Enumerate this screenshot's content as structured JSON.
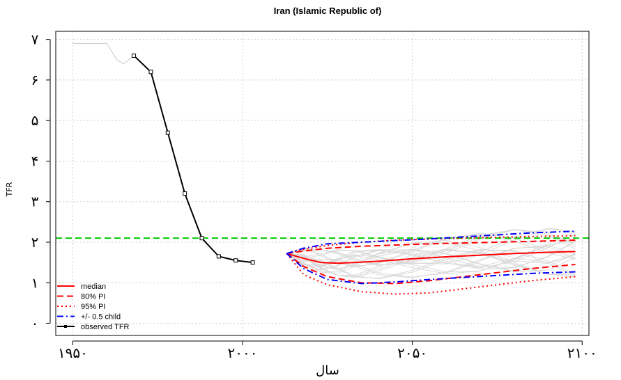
{
  "chart_data": {
    "type": "line",
    "title": "Iran (Islamic Republic of)",
    "xlabel": "سال",
    "ylabel": "TFR",
    "xlim": [
      1945,
      2102
    ],
    "ylim": [
      -0.3,
      7.2
    ],
    "grid": true,
    "legend_position": "bottom-left",
    "x_ticks": [
      {
        "value": 1950,
        "label": "۱۹۵۰"
      },
      {
        "value": 2000,
        "label": "۲۰۰۰"
      },
      {
        "value": 2050,
        "label": "۲۰۵۰"
      },
      {
        "value": 2100,
        "label": "۲۱۰۰"
      }
    ],
    "y_ticks": [
      {
        "value": 0,
        "label": "۰"
      },
      {
        "value": 1,
        "label": "۱"
      },
      {
        "value": 2,
        "label": "۲"
      },
      {
        "value": 3,
        "label": "۳"
      },
      {
        "value": 4,
        "label": "۴"
      },
      {
        "value": 5,
        "label": "۵"
      },
      {
        "value": 6,
        "label": "۶"
      },
      {
        "value": 7,
        "label": "۷"
      }
    ],
    "reference_line": {
      "y": 2.1,
      "color": "#00cc00"
    },
    "series": [
      {
        "name": "observed TFR",
        "color": "#000000",
        "x": [
          1968,
          1973,
          1978,
          1983,
          1988,
          1993,
          1998,
          2003
        ],
        "y": [
          6.6,
          6.2,
          4.7,
          3.2,
          2.1,
          1.65,
          1.55,
          1.5
        ]
      },
      {
        "name": "median",
        "color": "#ff0000",
        "x": [
          2013,
          2018,
          2023,
          2028,
          2033,
          2040,
          2050,
          2060,
          2070,
          2080,
          2090,
          2098
        ],
        "y": [
          1.72,
          1.6,
          1.5,
          1.48,
          1.5,
          1.53,
          1.59,
          1.64,
          1.68,
          1.72,
          1.75,
          1.77
        ]
      },
      {
        "name": "80% PI",
        "color": "#ff0000",
        "x": [
          2013,
          2018,
          2025,
          2035,
          2045,
          2055,
          2065,
          2075,
          2085,
          2098
        ],
        "y_upper": [
          1.72,
          1.78,
          1.85,
          1.9,
          1.93,
          1.96,
          1.98,
          2.0,
          2.02,
          2.05
        ],
        "y_lower": [
          1.72,
          1.4,
          1.15,
          1.0,
          0.98,
          1.05,
          1.15,
          1.25,
          1.35,
          1.45
        ]
      },
      {
        "name": "95% PI",
        "color": "#ff0000",
        "x": [
          2013,
          2018,
          2025,
          2035,
          2045,
          2055,
          2065,
          2075,
          2085,
          2098
        ],
        "y_upper": [
          1.72,
          1.82,
          1.92,
          2.0,
          2.05,
          2.08,
          2.1,
          2.12,
          2.14,
          2.16
        ],
        "y_lower": [
          1.72,
          1.2,
          0.95,
          0.78,
          0.72,
          0.75,
          0.85,
          0.95,
          1.05,
          1.15
        ]
      },
      {
        "name": "+/- 0.5 child",
        "color": "#0000ff",
        "x": [
          2013,
          2018,
          2025,
          2035,
          2045,
          2055,
          2065,
          2075,
          2085,
          2098
        ],
        "y_upper": [
          1.72,
          1.85,
          1.96,
          2.0,
          2.04,
          2.08,
          2.13,
          2.18,
          2.23,
          2.27
        ],
        "y_lower": [
          1.72,
          1.35,
          1.08,
          0.98,
          1.02,
          1.08,
          1.13,
          1.18,
          1.23,
          1.27
        ]
      }
    ],
    "background_series": {
      "color": "#d0d0d0",
      "x": [
        1950,
        1955,
        1960,
        1963,
        1965,
        1968
      ],
      "y": [
        6.9,
        6.9,
        6.9,
        6.5,
        6.4,
        6.6
      ]
    },
    "legend": [
      {
        "label": "median",
        "color": "#ff0000",
        "dash": "solid"
      },
      {
        "label": "80% PI",
        "color": "#ff0000",
        "dash": "dashed"
      },
      {
        "label": "95% PI",
        "color": "#ff0000",
        "dash": "dotted"
      },
      {
        "label": "+/- 0.5 child",
        "color": "#0000ff",
        "dash": "dashdot"
      },
      {
        "label": "observed TFR",
        "color": "#000000",
        "dash": "solid-marker"
      }
    ]
  }
}
